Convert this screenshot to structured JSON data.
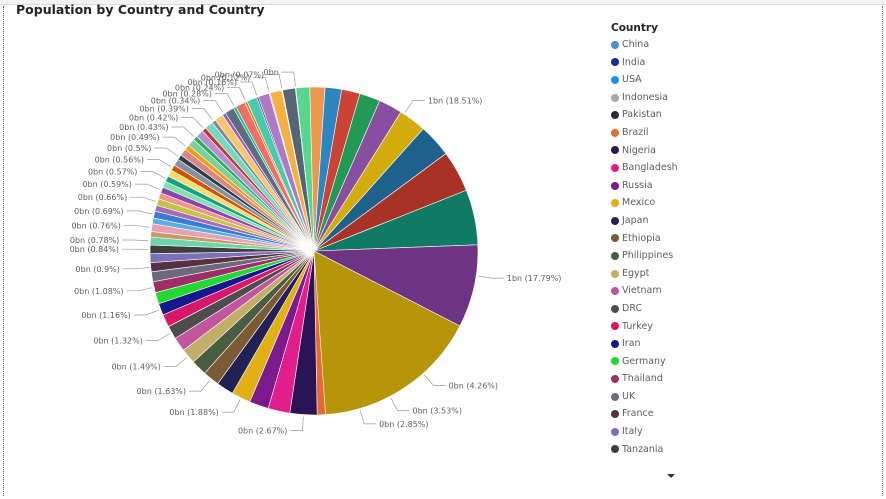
{
  "page": {
    "title": "Population by Country and Country"
  },
  "chart_data": {
    "type": "pie",
    "title": "Population by Country and Country",
    "legend_title": "Country",
    "legend_position": "right",
    "slices": [
      {
        "name": "China",
        "label": "1bn (18.51%)",
        "percent": 18.51,
        "color": "#4a8fc9"
      },
      {
        "name": "India",
        "label": "1bn (17.79%)",
        "percent": 17.79,
        "color": "#1a2a98"
      },
      {
        "name": "USA",
        "label": "0bn (4.26%)",
        "percent": 4.26,
        "color": "#1f8ef1"
      },
      {
        "name": "Indonesia",
        "label": "0bn (3.53%)",
        "percent": 3.53,
        "color": "#a7a7a0"
      },
      {
        "name": "Pakistan",
        "label": "0bn (2.85%)",
        "percent": 2.85,
        "color": "#2c2c34"
      },
      {
        "name": "Brazil",
        "label": "",
        "percent": 2.75,
        "color": "#e46a33"
      },
      {
        "name": "Nigeria",
        "label": "0bn (2.67%)",
        "percent": 2.67,
        "color": "#2b1455"
      },
      {
        "name": "Bangladesh",
        "label": "",
        "percent": 2.15,
        "color": "#e01e8c"
      },
      {
        "name": "Russia",
        "label": "",
        "percent": 1.9,
        "color": "#7c1a8e"
      },
      {
        "name": "Mexico",
        "label": "0bn (1.88%)",
        "percent": 1.88,
        "color": "#e0b115"
      },
      {
        "name": "Japan",
        "label": "",
        "percent": 1.7,
        "color": "#222155"
      },
      {
        "name": "Ethiopia",
        "label": "0bn (1.63%)",
        "percent": 1.63,
        "color": "#7a5b33"
      },
      {
        "name": "Philippines",
        "label": "",
        "percent": 1.55,
        "color": "#4a5c41"
      },
      {
        "name": "Egypt",
        "label": "0bn (1.49%)",
        "percent": 1.49,
        "color": "#c2ad69"
      },
      {
        "name": "Vietnam",
        "label": "",
        "percent": 1.4,
        "color": "#c2559d"
      },
      {
        "name": "DRC",
        "label": "0bn (1.32%)",
        "percent": 1.32,
        "color": "#4d4d4d"
      },
      {
        "name": "Turkey",
        "label": "",
        "percent": 1.25,
        "color": "#d6176a"
      },
      {
        "name": "Iran",
        "label": "0bn (1.16%)",
        "percent": 1.16,
        "color": "#14198f"
      },
      {
        "name": "Germany",
        "label": "",
        "percent": 1.12,
        "color": "#23d82e"
      },
      {
        "name": "Thailand",
        "label": "0bn (1.08%)",
        "percent": 1.08,
        "color": "#a02d6a"
      },
      {
        "name": "UK",
        "label": "",
        "percent": 0.98,
        "color": "#6a6a7a"
      },
      {
        "name": "France",
        "label": "0bn (0.9%)",
        "percent": 0.9,
        "color": "#563141"
      },
      {
        "name": "Italy",
        "label": "",
        "percent": 0.87,
        "color": "#7f6fb8"
      },
      {
        "name": "Tanzania",
        "label": "0bn (0.84%)",
        "percent": 0.84,
        "color": "#3e3e3e"
      }
    ],
    "other_labels": [
      "0bn (0.78%)",
      "0bn (0.76%)",
      "0bn (0.69%)",
      "0bn (0.66%)",
      "0bn (0.59%)",
      "0bn (0.57%)",
      "0bn (0.56%)",
      "0bn (0.5%)",
      "0bn (0.49%)",
      "0bn (0.43%)",
      "0bn (0.42%)",
      "0bn (0.39%)",
      "0bn (0.34%)",
      "0bn (0.28%)",
      "0bn (0.24%)",
      "0bn (0.16%)",
      "0bn (0.12%)",
      "0bn (0.07%)",
      "0bn"
    ],
    "other_colors": [
      "#6bd6a8",
      "#e8a0b4",
      "#3a7bd5",
      "#c4c448",
      "#8e44ad",
      "#16a085",
      "#d35400",
      "#2c3e50",
      "#f39c12",
      "#27ae60",
      "#c0392b",
      "#7f8c8d",
      "#9b59b6",
      "#1abc9c",
      "#e67e22",
      "#34495e",
      "#b3b3ff",
      "#ff99cc",
      "#66cc99",
      "#cc9966",
      "#5dade2",
      "#a569bd",
      "#f1948a",
      "#82e0aa",
      "#f7dc6f",
      "#85929e",
      "#d98880",
      "#7dcea0",
      "#bb8fce",
      "#76d7c4",
      "#f8c471",
      "#5d6d7e",
      "#ec7063",
      "#48c9b0",
      "#af7ac5",
      "#f5b041",
      "#566573",
      "#58d68d",
      "#eb984e",
      "#2e86c1",
      "#cb4335",
      "#229954",
      "#884ea0",
      "#d4ac0d",
      "#1f618d",
      "#a93226",
      "#117a65",
      "#6c3483",
      "#b7950b",
      "#154360"
    ]
  }
}
